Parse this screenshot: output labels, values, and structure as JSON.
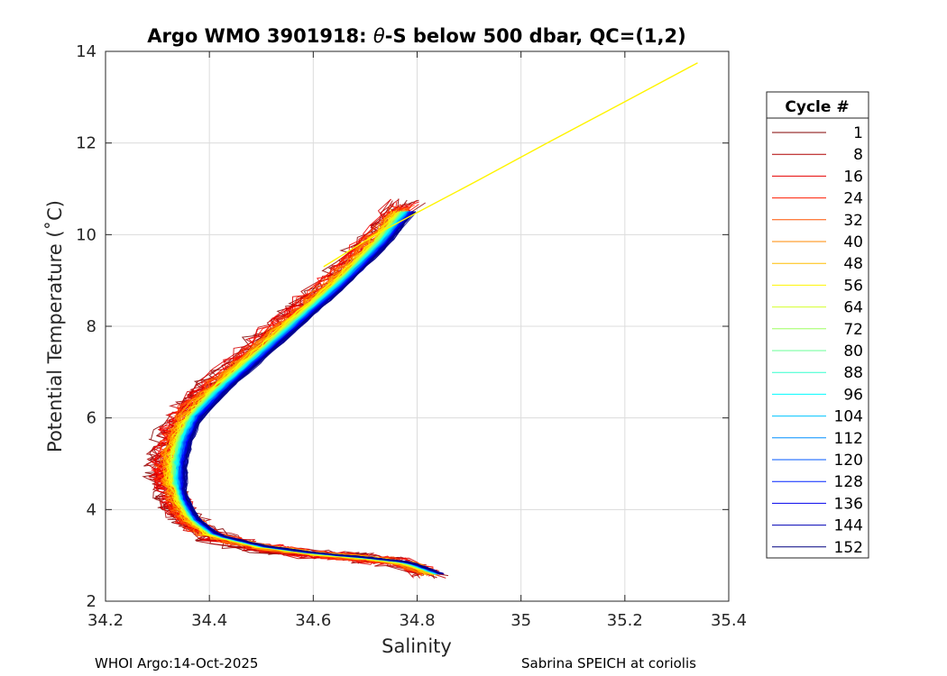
{
  "chart_data": {
    "type": "line",
    "title_prefix": "Argo WMO 3901918: ",
    "title_theta": "θ",
    "title_suffix": "-S below 500 dbar,  QC=(1,2)",
    "xlabel": "Salinity",
    "ylabel": "Potential Temperature (˚C)",
    "xlim": [
      34.2,
      35.4
    ],
    "ylim": [
      2,
      14
    ],
    "xticks": [
      "34.2",
      "34.4",
      "34.6",
      "34.8",
      "35",
      "35.2",
      "35.4"
    ],
    "yticks": [
      "2",
      "4",
      "6",
      "8",
      "10",
      "12",
      "14"
    ],
    "grid": true,
    "legend": {
      "title": "Cycle #",
      "placement": "outside-right",
      "entries": [
        "1",
        "8",
        "16",
        "24",
        "32",
        "40",
        "48",
        "56",
        "64",
        "72",
        "80",
        "88",
        "96",
        "104",
        "112",
        "120",
        "128",
        "136",
        "144",
        "152"
      ]
    },
    "series_profile_base": {
      "S": [
        34.78,
        34.73,
        34.66,
        34.58,
        34.5,
        34.42,
        34.37,
        34.35,
        34.34,
        34.34,
        34.35,
        34.37,
        34.41,
        34.5,
        34.6,
        34.7,
        34.78,
        34.84
      ],
      "T": [
        10.5,
        9.8,
        9.0,
        8.2,
        7.4,
        6.6,
        6.0,
        5.5,
        5.0,
        4.6,
        4.2,
        3.8,
        3.45,
        3.2,
        3.05,
        2.95,
        2.85,
        2.6
      ]
    },
    "series_warm_extension": {
      "name": "56",
      "S": [
        35.34,
        35.2,
        35.05,
        34.92,
        34.82,
        34.72,
        34.62
      ],
      "T": [
        13.75,
        12.9,
        12.0,
        11.2,
        10.6,
        10.0,
        9.3
      ]
    }
  },
  "footer": {
    "left": "WHOI Argo:14-Oct-2025",
    "right": "Sabrina SPEICH at coriolis"
  }
}
